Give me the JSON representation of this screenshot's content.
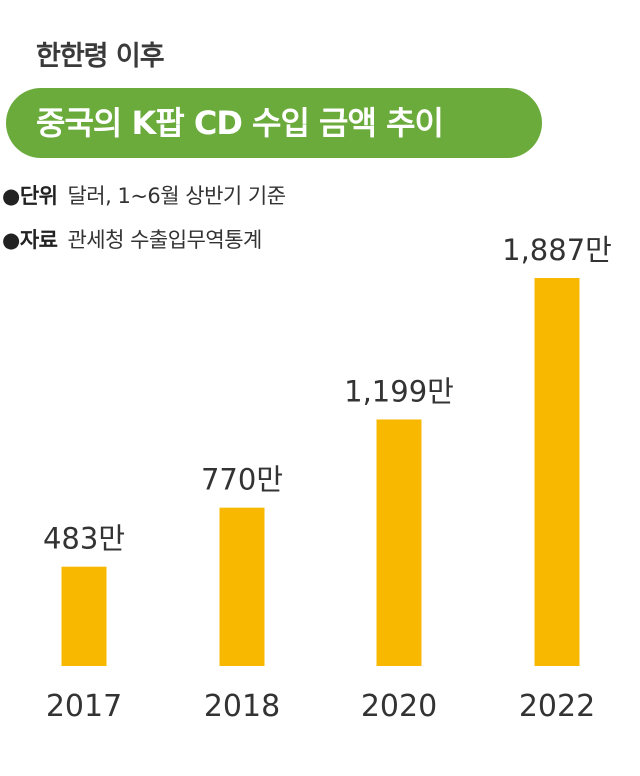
{
  "header": {
    "kicker": "한한령 이후",
    "title": "중국의 K팝 CD 수입 금액 추이"
  },
  "notes": [
    {
      "bullet": "●",
      "key": "단위",
      "value": "달러, 1~6월 상반기 기준"
    },
    {
      "bullet": "●",
      "key": "자료",
      "value": "관세청 수출입무역통계"
    }
  ],
  "colors": {
    "title_pill": "#6aab3c",
    "bar": "#f9b800",
    "text": "#333333"
  },
  "chart_data": {
    "type": "bar",
    "categories": [
      "2017",
      "2018",
      "2020",
      "2022"
    ],
    "values": [
      483,
      770,
      1199,
      1887
    ],
    "value_labels": [
      "483만",
      "770만",
      "1,199만",
      "1,887만"
    ],
    "title": "중국의 K팝 CD 수입 금액 추이",
    "xlabel": "",
    "ylabel": "",
    "ylim": [
      0,
      1887
    ],
    "grid": false,
    "legend": "none"
  }
}
